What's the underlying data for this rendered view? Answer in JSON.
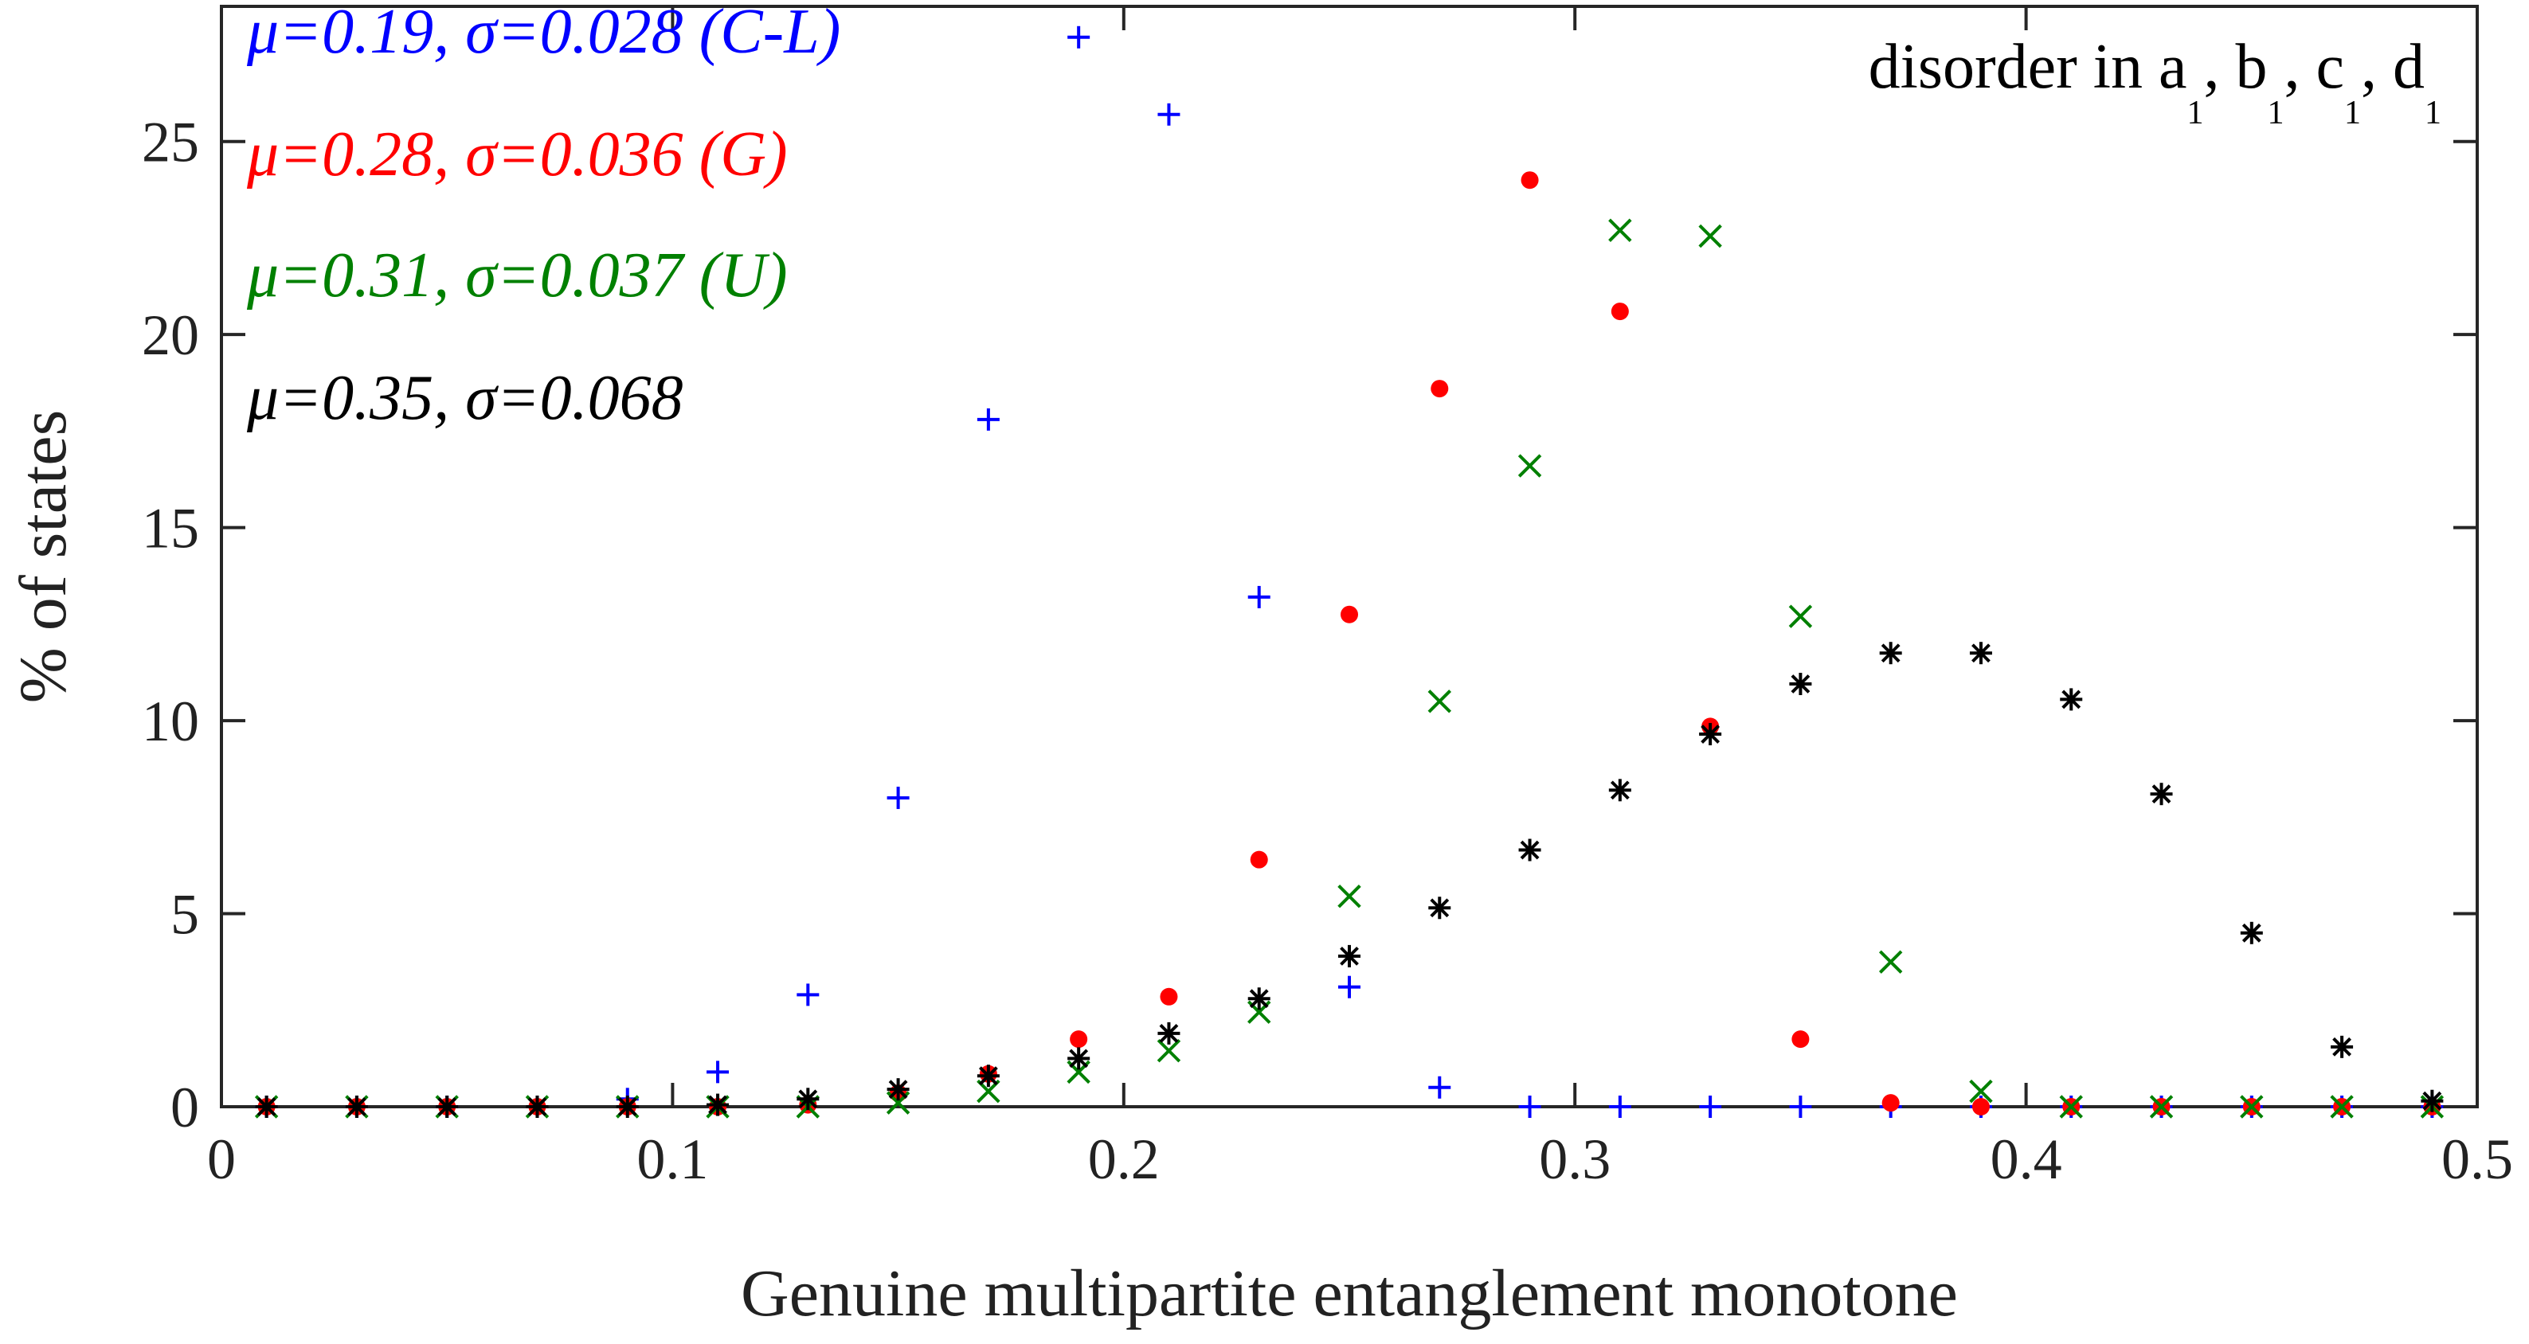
{
  "chart_data": {
    "type": "scatter",
    "xlabel": "Genuine multipartite entanglement monotone",
    "ylabel": "% of states",
    "xlim": [
      0,
      0.5
    ],
    "ylim": [
      0,
      28.5
    ],
    "xticks": [
      0,
      0.1,
      0.2,
      0.3,
      0.4,
      0.5
    ],
    "xtick_labels": [
      "0",
      "0.1",
      "0.2",
      "0.3",
      "0.4",
      "0.5"
    ],
    "yticks": [
      0,
      5,
      10,
      15,
      20,
      25
    ],
    "ytick_labels": [
      "0",
      "5",
      "10",
      "15",
      "20",
      "25"
    ],
    "grid": false,
    "annotation": {
      "prefix": "disorder in ",
      "parts": [
        {
          "base": "a",
          "sub": "1",
          "sep": ", "
        },
        {
          "base": "b",
          "sub": "1",
          "sep": ", "
        },
        {
          "base": "c",
          "sub": "1",
          "sep": ", "
        },
        {
          "base": "d",
          "sub": "1",
          "sep": ""
        }
      ],
      "position": "top-right"
    },
    "x": [
      0.01,
      0.03,
      0.05,
      0.07,
      0.09,
      0.11,
      0.13,
      0.15,
      0.17,
      0.19,
      0.21,
      0.23,
      0.25,
      0.27,
      0.29,
      0.31,
      0.33,
      0.35,
      0.37,
      0.39,
      0.41,
      0.43,
      0.45,
      0.47,
      0.49
    ],
    "series": [
      {
        "name": "C-L",
        "legend": "μ=0.19, σ=0.028 (C-L)",
        "marker": "plus",
        "color": "#0000ff",
        "values": [
          0,
          0,
          0,
          0,
          0.2,
          0.9,
          2.9,
          8.0,
          17.8,
          27.7,
          25.7,
          13.2,
          3.1,
          0.5,
          0,
          0,
          0,
          0,
          0,
          0,
          0,
          0,
          0,
          0,
          0
        ]
      },
      {
        "name": "G",
        "legend": "μ=0.28, σ=0.036 (G)",
        "marker": "dot",
        "color": "#ff0000",
        "values": [
          0,
          0,
          0,
          0,
          0,
          0,
          0.05,
          0.35,
          0.85,
          1.75,
          2.85,
          6.4,
          12.75,
          18.6,
          24.0,
          20.6,
          9.85,
          1.75,
          0.1,
          0,
          0,
          0,
          0,
          0,
          0
        ]
      },
      {
        "name": "U",
        "legend": "μ=0.31, σ=0.037 (U)",
        "marker": "x",
        "color": "#008000",
        "values": [
          0,
          0,
          0,
          0,
          0,
          0,
          0,
          0.1,
          0.4,
          0.9,
          1.45,
          2.45,
          5.45,
          10.5,
          16.6,
          22.7,
          22.55,
          12.7,
          3.75,
          0.4,
          0,
          0,
          0,
          0,
          0
        ]
      },
      {
        "name": "disorder",
        "legend": "μ=0.35, σ=0.068",
        "marker": "star",
        "color": "#000000",
        "values": [
          0,
          0,
          0,
          0,
          0,
          0.05,
          0.2,
          0.45,
          0.8,
          1.25,
          1.9,
          2.8,
          3.9,
          5.15,
          6.65,
          8.2,
          9.65,
          10.95,
          11.75,
          11.75,
          10.55,
          8.1,
          4.5,
          1.55,
          0.15
        ]
      }
    ]
  }
}
